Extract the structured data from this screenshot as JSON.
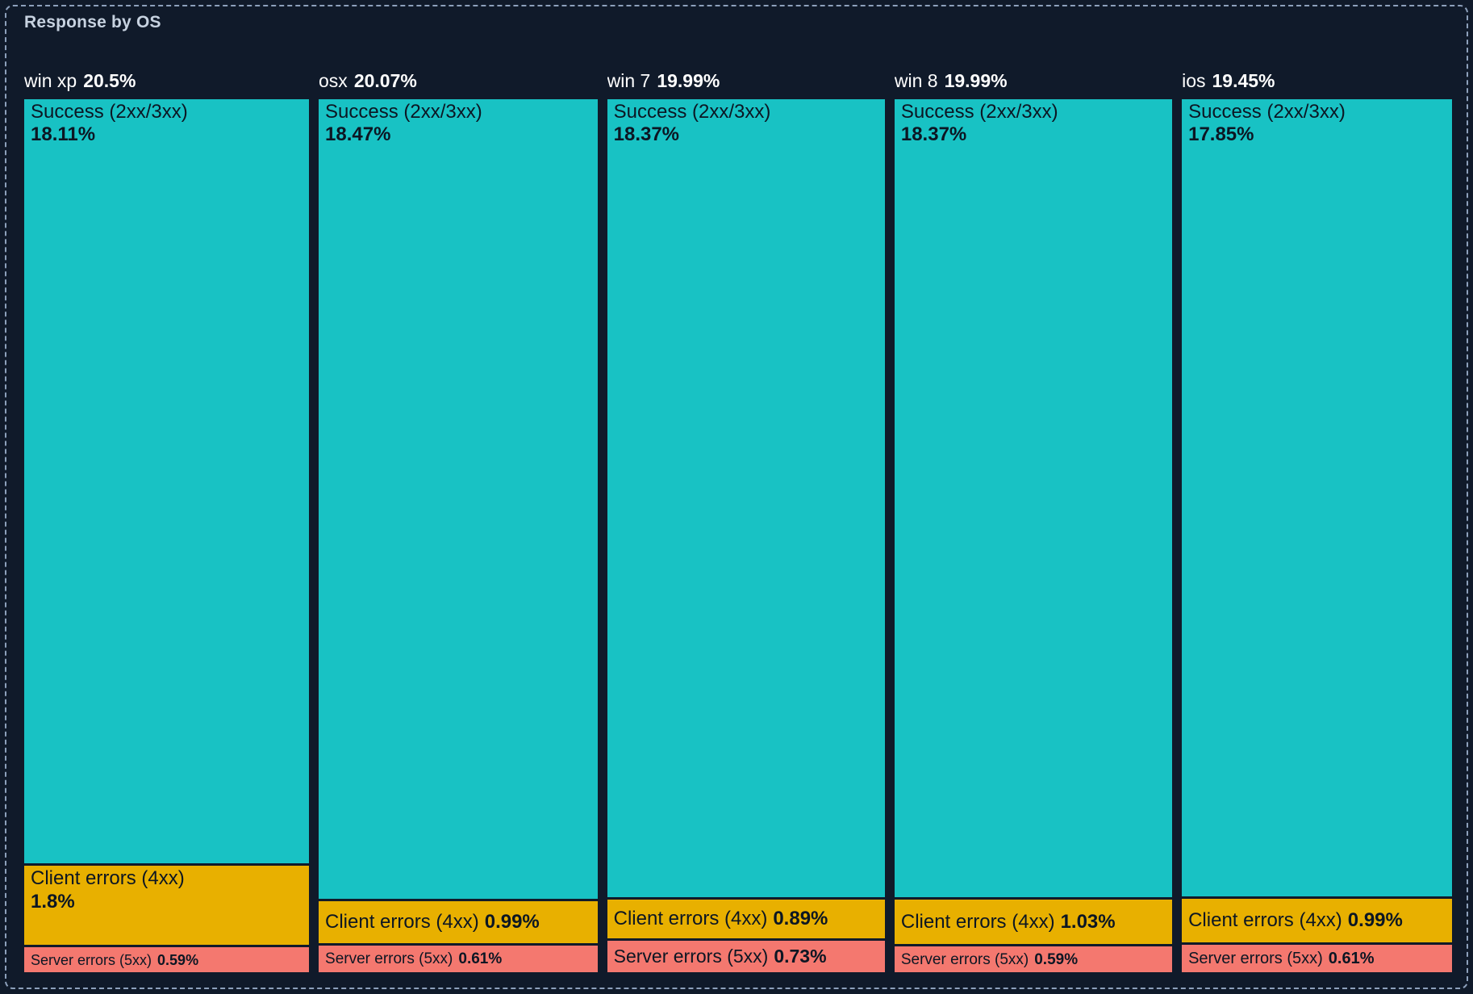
{
  "panel": {
    "title": "Response by OS"
  },
  "colors": {
    "background": "#101a2a",
    "panel_border": "#8da0bb",
    "title_text": "#c7d2e0",
    "header_text": "#ffffff",
    "block_text": "#0c1623",
    "success": "#18c2c4",
    "client_errors": "#e8b000",
    "server_errors": "#f4786f"
  },
  "chart_data": {
    "type": "treemap",
    "title": "Response by OS",
    "legend": "none",
    "layout_hint": "5 vertical columns (one per OS), column widths and stacked segment heights proportional to percentage values; dark gaps between rectangles",
    "units": "%",
    "columns": [
      {
        "label": "win xp",
        "total_display": "20.5%",
        "total_value": 20.5,
        "segments": [
          {
            "name": "Success (2xx/3xx)",
            "value": 18.11,
            "display": "18.11%",
            "color_key": "success"
          },
          {
            "name": "Client errors (4xx)",
            "value": 1.8,
            "display": "1.8%",
            "color_key": "client_errors"
          },
          {
            "name": "Server errors (5xx)",
            "value": 0.59,
            "display": "0.59%",
            "color_key": "server_errors"
          }
        ]
      },
      {
        "label": "osx",
        "total_display": "20.07%",
        "total_value": 20.07,
        "segments": [
          {
            "name": "Success (2xx/3xx)",
            "value": 18.47,
            "display": "18.47%",
            "color_key": "success"
          },
          {
            "name": "Client errors (4xx)",
            "value": 0.99,
            "display": "0.99%",
            "color_key": "client_errors"
          },
          {
            "name": "Server errors (5xx)",
            "value": 0.61,
            "display": "0.61%",
            "color_key": "server_errors"
          }
        ]
      },
      {
        "label": "win 7",
        "total_display": "19.99%",
        "total_value": 19.99,
        "segments": [
          {
            "name": "Success (2xx/3xx)",
            "value": 18.37,
            "display": "18.37%",
            "color_key": "success"
          },
          {
            "name": "Client errors (4xx)",
            "value": 0.89,
            "display": "0.89%",
            "color_key": "client_errors"
          },
          {
            "name": "Server errors (5xx)",
            "value": 0.73,
            "display": "0.73%",
            "color_key": "server_errors"
          }
        ]
      },
      {
        "label": "win 8",
        "total_display": "19.99%",
        "total_value": 19.99,
        "segments": [
          {
            "name": "Success (2xx/3xx)",
            "value": 18.37,
            "display": "18.37%",
            "color_key": "success"
          },
          {
            "name": "Client errors (4xx)",
            "value": 1.03,
            "display": "1.03%",
            "color_key": "client_errors"
          },
          {
            "name": "Server errors (5xx)",
            "value": 0.59,
            "display": "0.59%",
            "color_key": "server_errors"
          }
        ]
      },
      {
        "label": "ios",
        "total_display": "19.45%",
        "total_value": 19.45,
        "segments": [
          {
            "name": "Success (2xx/3xx)",
            "value": 17.85,
            "display": "17.85%",
            "color_key": "success"
          },
          {
            "name": "Client errors (4xx)",
            "value": 0.99,
            "display": "0.99%",
            "color_key": "client_errors"
          },
          {
            "name": "Server errors (5xx)",
            "value": 0.61,
            "display": "0.61%",
            "color_key": "server_errors"
          }
        ]
      }
    ]
  }
}
